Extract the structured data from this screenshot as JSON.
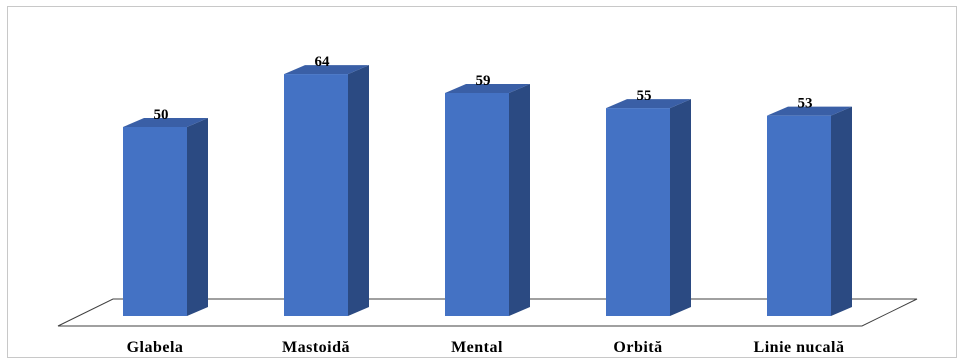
{
  "chart_data": {
    "type": "bar",
    "style": "3d-column",
    "categories": [
      "Glabela",
      "Mastoidă",
      "Mental",
      "Orbită",
      "Linie nucală"
    ],
    "values": [
      50,
      64,
      59,
      55,
      53
    ],
    "title": "",
    "xlabel": "",
    "ylabel": "",
    "ylim": [
      0,
      70
    ],
    "grid": false,
    "legend": "none",
    "data_labels": true
  },
  "colors": {
    "bar_front": "#4472c4",
    "bar_side": "#2b4a82",
    "bar_top": "#3a5fa6",
    "floor_stroke": "#404040",
    "floor_fill": "#ffffff"
  }
}
